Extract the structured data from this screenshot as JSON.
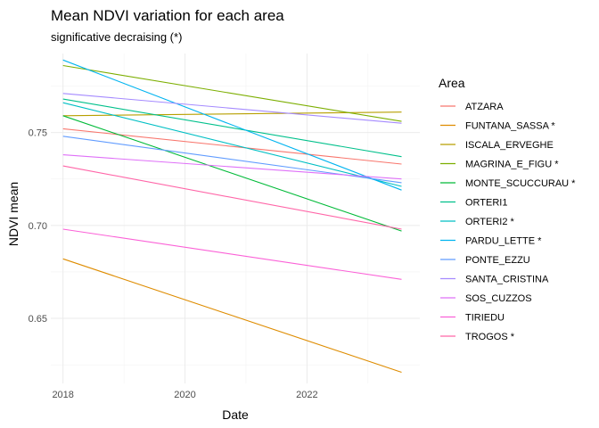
{
  "chart_data": {
    "type": "line",
    "title": "Mean NDVI variation for each area",
    "subtitle": "significative decraising (*)",
    "xlabel": "Date",
    "ylabel": "NDVI mean",
    "xlim": [
      2017.8,
      2023.85
    ],
    "ylim": [
      0.615,
      0.7925
    ],
    "x_ticks": [
      2018,
      2020,
      2022
    ],
    "x_tick_labels": [
      "2018",
      "2020",
      "2022"
    ],
    "x_minor_ticks": [
      2019,
      2021,
      2023
    ],
    "y_ticks": [
      0.65,
      0.7,
      0.75
    ],
    "y_tick_labels": [
      "0.65",
      "0.70",
      "0.75"
    ],
    "y_minor_ticks": [
      0.625,
      0.675,
      0.725,
      0.775
    ],
    "grid": true,
    "legend_title": "Area",
    "legend_position": "right",
    "series": [
      {
        "name": "ATZARA",
        "color": "#F8766D",
        "x": [
          2018.0,
          2023.55
        ],
        "y": [
          0.752,
          0.733
        ]
      },
      {
        "name": "FUNTANA_SASSA *",
        "color": "#DE8C00",
        "x": [
          2018.0,
          2023.55
        ],
        "y": [
          0.682,
          0.621
        ]
      },
      {
        "name": "ISCALA_ERVEGHE",
        "color": "#B79F00",
        "x": [
          2018.0,
          2023.55
        ],
        "y": [
          0.759,
          0.761
        ]
      },
      {
        "name": "MAGRINA_E_FIGU *",
        "color": "#7CAE00",
        "x": [
          2018.0,
          2023.55
        ],
        "y": [
          0.786,
          0.756
        ]
      },
      {
        "name": "MONTE_SCUCCURAU *",
        "color": "#00BA38",
        "x": [
          2018.0,
          2023.55
        ],
        "y": [
          0.759,
          0.697
        ]
      },
      {
        "name": "ORTERI1",
        "color": "#00C08B",
        "x": [
          2018.0,
          2023.55
        ],
        "y": [
          0.768,
          0.737
        ]
      },
      {
        "name": "ORTERI2 *",
        "color": "#00BFC4",
        "x": [
          2018.0,
          2023.55
        ],
        "y": [
          0.766,
          0.721
        ]
      },
      {
        "name": "PARDU_LETTE *",
        "color": "#00B4F0",
        "x": [
          2018.0,
          2023.55
        ],
        "y": [
          0.789,
          0.719
        ]
      },
      {
        "name": "PONTE_EZZU",
        "color": "#619CFF",
        "x": [
          2018.0,
          2023.55
        ],
        "y": [
          0.748,
          0.723
        ]
      },
      {
        "name": "SANTA_CRISTINA",
        "color": "#A58AFF",
        "x": [
          2018.0,
          2023.55
        ],
        "y": [
          0.771,
          0.755
        ]
      },
      {
        "name": "SOS_CUZZOS",
        "color": "#DF70F8",
        "x": [
          2018.0,
          2023.55
        ],
        "y": [
          0.738,
          0.725
        ]
      },
      {
        "name": "TIRIEDU",
        "color": "#FB61D7",
        "x": [
          2018.0,
          2023.55
        ],
        "y": [
          0.698,
          0.671
        ]
      },
      {
        "name": "TROGOS *",
        "color": "#FF66A8",
        "x": [
          2018.0,
          2023.55
        ],
        "y": [
          0.732,
          0.698
        ]
      }
    ]
  }
}
